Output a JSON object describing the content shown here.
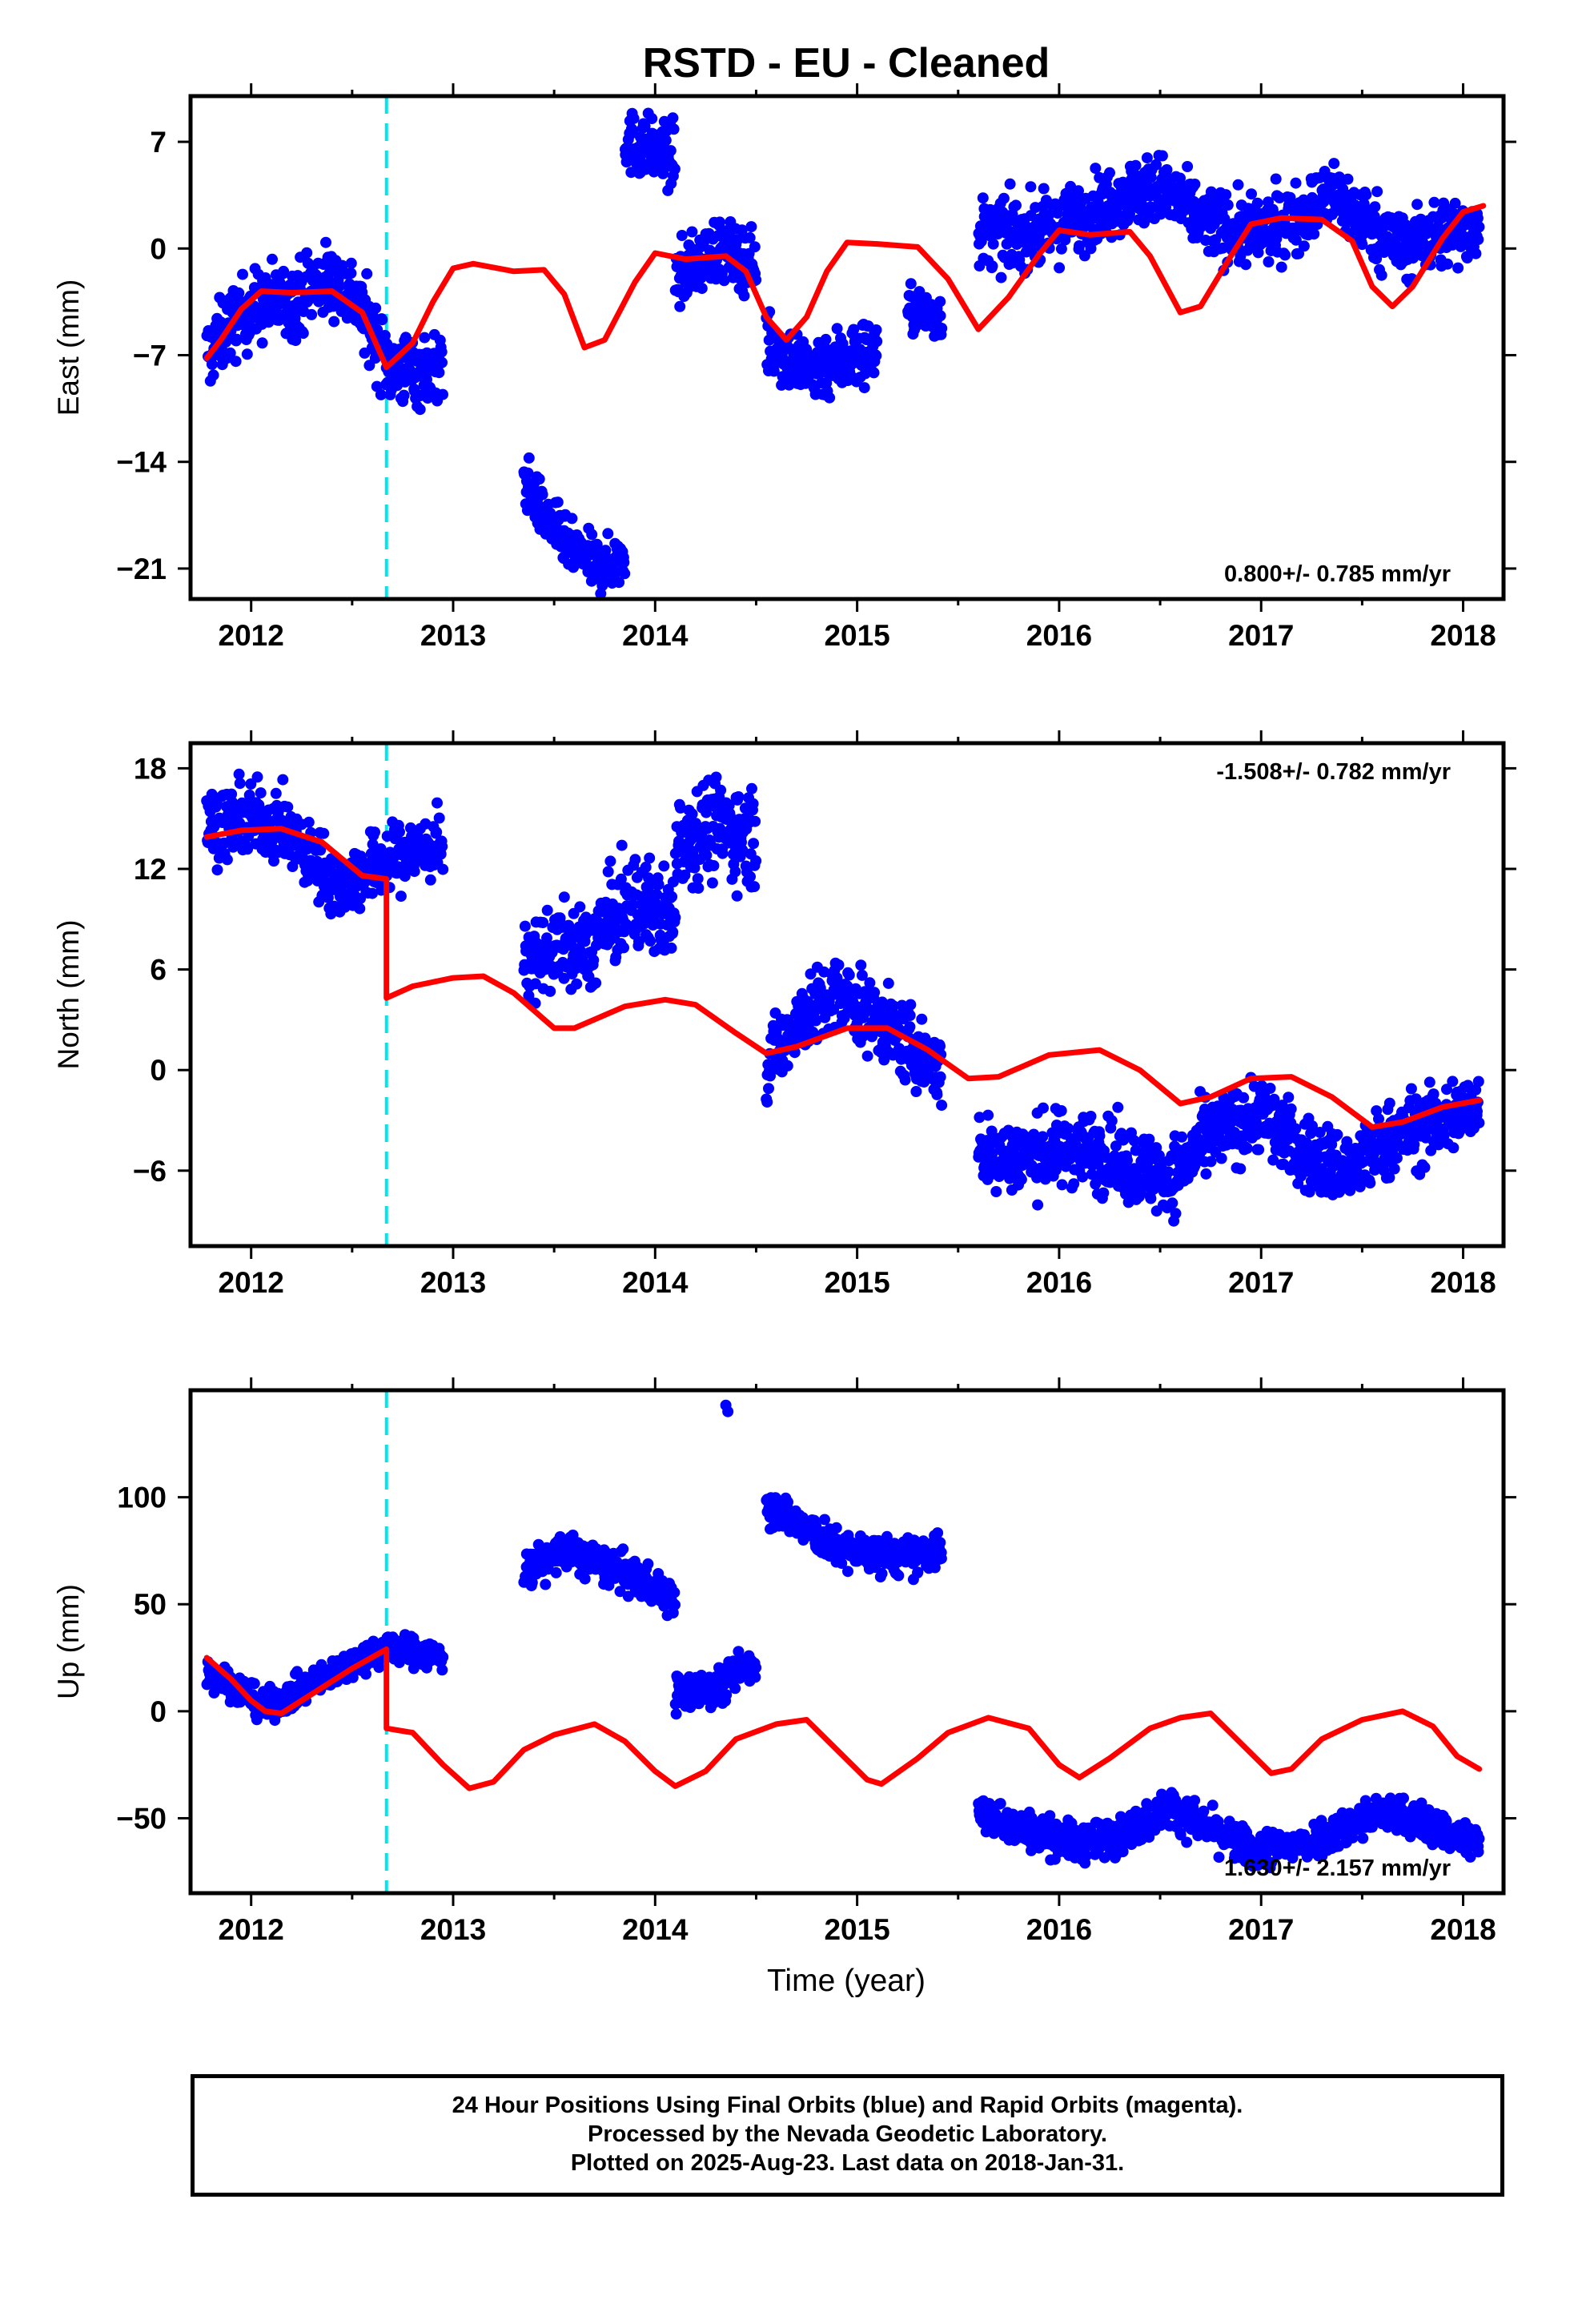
{
  "title": "RSTD  - EU - Cleaned",
  "xlabel": "Time (year)",
  "caption": [
    "24 Hour Positions Using Final Orbits (blue) and Rapid Orbits (magenta).",
    "Processed by the Nevada Geodetic Laboratory.",
    "Plotted on 2025-Aug-23. Last data on 2018-Jan-31."
  ],
  "colors": {
    "data": "#0000ff",
    "model": "#ff0000",
    "event": "#00e5ee",
    "axes": "#000000"
  },
  "chart_data": [
    {
      "type": "scatter",
      "ylabel": "East (mm)",
      "rate_text": "0.800+/- 0.785 mm/yr",
      "rate_position": "bottom-right",
      "xlim": [
        2011.7,
        2018.2
      ],
      "ylim": [
        -23,
        10
      ],
      "xticks": [
        "2012",
        "2013",
        "2014",
        "2015",
        "2016",
        "2017",
        "2018"
      ],
      "yticks": [
        "7",
        "0",
        "-7",
        "-14",
        "-21"
      ],
      "event_line_x": 2012.67,
      "segments": [
        {
          "x0": 2011.78,
          "x1": 2012.95,
          "y": [
            [
              2011.78,
              -7
            ],
            [
              2011.9,
              -5
            ],
            [
              2012.0,
              -4
            ],
            [
              2012.1,
              -3.5
            ],
            [
              2012.2,
              -3.5
            ],
            [
              2012.3,
              -2.5
            ],
            [
              2012.4,
              -2
            ],
            [
              2012.5,
              -3
            ],
            [
              2012.6,
              -5.5
            ],
            [
              2012.7,
              -8
            ],
            [
              2012.95,
              -8
            ]
          ],
          "spread": 1.4
        },
        {
          "x0": 2013.35,
          "x1": 2013.85,
          "y": [
            [
              2013.35,
              -15
            ],
            [
              2013.45,
              -17.5
            ],
            [
              2013.6,
              -20
            ],
            [
              2013.75,
              -21
            ],
            [
              2013.85,
              -20
            ]
          ],
          "spread": 1.0
        },
        {
          "x0": 2013.85,
          "x1": 2014.1,
          "y": [
            [
              2013.85,
              7
            ],
            [
              2014.0,
              6.5
            ],
            [
              2014.1,
              6
            ]
          ],
          "spread": 1.2
        },
        {
          "x0": 2014.1,
          "x1": 2014.5,
          "y": [
            [
              2014.1,
              -2
            ],
            [
              2014.3,
              0
            ],
            [
              2014.5,
              -1
            ]
          ],
          "spread": 1.2
        },
        {
          "x0": 2014.55,
          "x1": 2015.1,
          "y": [
            [
              2014.55,
              -6
            ],
            [
              2014.75,
              -8
            ],
            [
              2015.0,
              -7
            ],
            [
              2015.1,
              -6.5
            ]
          ],
          "spread": 1.3
        },
        {
          "x0": 2015.25,
          "x1": 2015.42,
          "y": [
            [
              2015.25,
              -4
            ],
            [
              2015.42,
              -4.5
            ]
          ],
          "spread": 0.9
        },
        {
          "x0": 2015.6,
          "x1": 2018.08,
          "y": [
            [
              2015.6,
              1
            ],
            [
              2015.9,
              1
            ],
            [
              2016.1,
              2
            ],
            [
              2016.3,
              3.5
            ],
            [
              2016.5,
              4
            ],
            [
              2016.7,
              2
            ],
            [
              2016.9,
              1
            ],
            [
              2017.1,
              1.5
            ],
            [
              2017.35,
              3.5
            ],
            [
              2017.5,
              2
            ],
            [
              2017.7,
              0
            ],
            [
              2017.9,
              1
            ],
            [
              2018.08,
              1.5
            ]
          ],
          "spread": 1.3
        }
      ],
      "model": [
        [
          2011.78,
          -7.2
        ],
        [
          2011.85,
          -6
        ],
        [
          2011.95,
          -4
        ],
        [
          2012.05,
          -2.8
        ],
        [
          2012.2,
          -2.9
        ],
        [
          2012.4,
          -2.8
        ],
        [
          2012.55,
          -4.2
        ],
        [
          2012.67,
          -7.8
        ],
        [
          2012.67,
          -7.8
        ],
        [
          2012.8,
          -6.2
        ],
        [
          2012.9,
          -3.5
        ],
        [
          2013.0,
          -1.3
        ],
        [
          2013.1,
          -1.0
        ],
        [
          2013.3,
          -1.5
        ],
        [
          2013.45,
          -1.4
        ],
        [
          2013.55,
          -3
        ],
        [
          2013.65,
          -6.5
        ],
        [
          2013.75,
          -6.0
        ],
        [
          2013.9,
          -2.2
        ],
        [
          2014.0,
          -0.3
        ],
        [
          2014.15,
          -0.7
        ],
        [
          2014.35,
          -0.5
        ],
        [
          2014.45,
          -1.5
        ],
        [
          2014.55,
          -4.5
        ],
        [
          2014.65,
          -6.0
        ],
        [
          2014.75,
          -4.5
        ],
        [
          2014.85,
          -1.5
        ],
        [
          2014.95,
          0.4
        ],
        [
          2015.1,
          0.3
        ],
        [
          2015.3,
          0.1
        ],
        [
          2015.45,
          -2
        ],
        [
          2015.6,
          -5.3
        ],
        [
          2015.75,
          -3.2
        ],
        [
          2015.9,
          -0.4
        ],
        [
          2016.0,
          1.2
        ],
        [
          2016.15,
          0.9
        ],
        [
          2016.35,
          1.1
        ],
        [
          2016.45,
          -0.5
        ],
        [
          2016.6,
          -4.2
        ],
        [
          2016.7,
          -3.8
        ],
        [
          2016.85,
          -0.5
        ],
        [
          2016.95,
          1.6
        ],
        [
          2017.1,
          2.0
        ],
        [
          2017.3,
          1.9
        ],
        [
          2017.45,
          0.5
        ],
        [
          2017.55,
          -2.5
        ],
        [
          2017.65,
          -3.8
        ],
        [
          2017.75,
          -2.5
        ],
        [
          2017.9,
          0.7
        ],
        [
          2018.0,
          2.4
        ],
        [
          2018.1,
          2.8
        ]
      ]
    },
    {
      "type": "scatter",
      "ylabel": "North (mm)",
      "rate_text": "-1.508+/- 0.782 mm/yr",
      "rate_position": "top-right",
      "xlim": [
        2011.7,
        2018.2
      ],
      "ylim": [
        -10.5,
        19.5
      ],
      "xticks": [
        "2012",
        "2013",
        "2014",
        "2015",
        "2016",
        "2017",
        "2018"
      ],
      "yticks": [
        "18",
        "12",
        "6",
        "0",
        "-6"
      ],
      "event_line_x": 2012.67,
      "segments": [
        {
          "x0": 2011.78,
          "x1": 2012.95,
          "y": [
            [
              2011.78,
              14.5
            ],
            [
              2012.0,
              15
            ],
            [
              2012.15,
              14.5
            ],
            [
              2012.3,
              12.5
            ],
            [
              2012.45,
              11
            ],
            [
              2012.6,
              12
            ],
            [
              2012.8,
              13
            ],
            [
              2012.95,
              13.5
            ]
          ],
          "spread": 1.2
        },
        {
          "x0": 2013.35,
          "x1": 2013.7,
          "y": [
            [
              2013.35,
              6
            ],
            [
              2013.5,
              7.5
            ],
            [
              2013.7,
              7
            ]
          ],
          "spread": 1.4
        },
        {
          "x0": 2013.7,
          "x1": 2014.1,
          "y": [
            [
              2013.7,
              8
            ],
            [
              2013.9,
              10
            ],
            [
              2014.1,
              9
            ]
          ],
          "spread": 1.6
        },
        {
          "x0": 2014.1,
          "x1": 2014.5,
          "y": [
            [
              2014.1,
              14
            ],
            [
              2014.3,
              14.5
            ],
            [
              2014.5,
              14
            ]
          ],
          "spread": 1.7
        },
        {
          "x0": 2014.55,
          "x1": 2015.42,
          "y": [
            [
              2014.55,
              0
            ],
            [
              2014.7,
              3
            ],
            [
              2014.9,
              4.5
            ],
            [
              2015.1,
              3
            ],
            [
              2015.3,
              1
            ],
            [
              2015.42,
              0
            ]
          ],
          "spread": 1.3
        },
        {
          "x0": 2015.6,
          "x1": 2018.08,
          "y": [
            [
              2015.6,
              -5
            ],
            [
              2015.9,
              -5
            ],
            [
              2016.1,
              -4.5
            ],
            [
              2016.3,
              -5.5
            ],
            [
              2016.55,
              -6.5
            ],
            [
              2016.75,
              -4
            ],
            [
              2017.0,
              -2.5
            ],
            [
              2017.2,
              -5
            ],
            [
              2017.45,
              -6
            ],
            [
              2017.65,
              -4
            ],
            [
              2017.9,
              -3
            ],
            [
              2018.08,
              -2
            ]
          ],
          "spread": 1.3
        }
      ],
      "model": [
        [
          2011.78,
          13.9
        ],
        [
          2011.95,
          14.3
        ],
        [
          2012.15,
          14.4
        ],
        [
          2012.35,
          13.6
        ],
        [
          2012.55,
          11.6
        ],
        [
          2012.67,
          11.4
        ],
        [
          2012.67,
          4.3
        ],
        [
          2012.8,
          5.0
        ],
        [
          2013.0,
          5.5
        ],
        [
          2013.15,
          5.6
        ],
        [
          2013.3,
          4.6
        ],
        [
          2013.5,
          2.5
        ],
        [
          2013.6,
          2.5
        ],
        [
          2013.85,
          3.8
        ],
        [
          2014.05,
          4.2
        ],
        [
          2014.2,
          3.9
        ],
        [
          2014.4,
          2.2
        ],
        [
          2014.55,
          1.0
        ],
        [
          2014.7,
          1.4
        ],
        [
          2014.95,
          2.5
        ],
        [
          2015.15,
          2.5
        ],
        [
          2015.35,
          1.2
        ],
        [
          2015.55,
          -0.5
        ],
        [
          2015.7,
          -0.4
        ],
        [
          2015.95,
          0.9
        ],
        [
          2016.2,
          1.2
        ],
        [
          2016.4,
          0.0
        ],
        [
          2016.6,
          -2.0
        ],
        [
          2016.75,
          -1.6
        ],
        [
          2016.95,
          -0.5
        ],
        [
          2017.15,
          -0.4
        ],
        [
          2017.35,
          -1.6
        ],
        [
          2017.55,
          -3.4
        ],
        [
          2017.7,
          -3.1
        ],
        [
          2017.9,
          -2.2
        ],
        [
          2018.08,
          -1.8
        ]
      ]
    },
    {
      "type": "scatter",
      "ylabel": "Up (mm)",
      "rate_text": "1.630+/- 2.157 mm/yr",
      "rate_position": "bottom-right",
      "xlim": [
        2011.7,
        2018.2
      ],
      "ylim": [
        -85,
        150
      ],
      "xticks": [
        "2012",
        "2013",
        "2014",
        "2015",
        "2016",
        "2017",
        "2018"
      ],
      "yticks": [
        "100",
        "50",
        "0",
        "-50"
      ],
      "event_line_x": 2012.67,
      "segments": [
        {
          "x0": 2011.78,
          "x1": 2012.95,
          "y": [
            [
              2011.78,
              18
            ],
            [
              2011.95,
              10
            ],
            [
              2012.05,
              2
            ],
            [
              2012.15,
              5
            ],
            [
              2012.35,
              15
            ],
            [
              2012.55,
              25
            ],
            [
              2012.7,
              30
            ],
            [
              2012.95,
              25
            ]
          ],
          "spread": 4
        },
        {
          "x0": 2013.35,
          "x1": 2014.1,
          "y": [
            [
              2013.35,
              65
            ],
            [
              2013.55,
              75
            ],
            [
              2013.75,
              68
            ],
            [
              2013.95,
              60
            ],
            [
              2014.1,
              52
            ]
          ],
          "spread": 5
        },
        {
          "x0": 2014.1,
          "x1": 2014.5,
          "y": [
            [
              2014.1,
              8
            ],
            [
              2014.3,
              10
            ],
            [
              2014.45,
              22
            ]
          ],
          "spread": 5
        },
        {
          "x0": 2014.55,
          "x1": 2015.42,
          "y": [
            [
              2014.55,
              97
            ],
            [
              2014.7,
              88
            ],
            [
              2014.9,
              76
            ],
            [
              2015.1,
              73
            ],
            [
              2015.3,
              72
            ],
            [
              2015.42,
              76
            ]
          ],
          "spread": 5
        },
        {
          "x0": 2015.6,
          "x1": 2018.08,
          "y": [
            [
              2015.6,
              -48
            ],
            [
              2015.9,
              -57
            ],
            [
              2016.1,
              -62
            ],
            [
              2016.3,
              -58
            ],
            [
              2016.55,
              -45
            ],
            [
              2016.75,
              -55
            ],
            [
              2016.95,
              -65
            ],
            [
              2017.2,
              -62
            ],
            [
              2017.4,
              -55
            ],
            [
              2017.6,
              -47
            ],
            [
              2017.8,
              -52
            ],
            [
              2018.08,
              -62
            ]
          ],
          "spread": 5
        }
      ],
      "extra_points": [
        [
          2014.35,
          143
        ],
        [
          2014.36,
          140
        ]
      ],
      "model": [
        [
          2011.78,
          25
        ],
        [
          2011.9,
          15
        ],
        [
          2012.0,
          5
        ],
        [
          2012.07,
          0
        ],
        [
          2012.15,
          -1
        ],
        [
          2012.3,
          8
        ],
        [
          2012.5,
          20
        ],
        [
          2012.67,
          29
        ],
        [
          2012.67,
          -8
        ],
        [
          2012.8,
          -10
        ],
        [
          2012.95,
          -25
        ],
        [
          2013.08,
          -36
        ],
        [
          2013.2,
          -33
        ],
        [
          2013.35,
          -18
        ],
        [
          2013.5,
          -11
        ],
        [
          2013.7,
          -6
        ],
        [
          2013.85,
          -14
        ],
        [
          2014.0,
          -28
        ],
        [
          2014.1,
          -35
        ],
        [
          2014.25,
          -28
        ],
        [
          2014.4,
          -13
        ],
        [
          2014.6,
          -6
        ],
        [
          2014.75,
          -4
        ],
        [
          2014.9,
          -18
        ],
        [
          2015.05,
          -32
        ],
        [
          2015.12,
          -34
        ],
        [
          2015.3,
          -22
        ],
        [
          2015.45,
          -10
        ],
        [
          2015.65,
          -3
        ],
        [
          2015.85,
          -8
        ],
        [
          2016.0,
          -25
        ],
        [
          2016.1,
          -31
        ],
        [
          2016.25,
          -22
        ],
        [
          2016.45,
          -8
        ],
        [
          2016.6,
          -3
        ],
        [
          2016.75,
          -1
        ],
        [
          2016.9,
          -15
        ],
        [
          2017.05,
          -29
        ],
        [
          2017.15,
          -27
        ],
        [
          2017.3,
          -13
        ],
        [
          2017.5,
          -4
        ],
        [
          2017.7,
          0
        ],
        [
          2017.85,
          -7
        ],
        [
          2017.97,
          -21
        ],
        [
          2018.08,
          -27
        ]
      ]
    }
  ]
}
